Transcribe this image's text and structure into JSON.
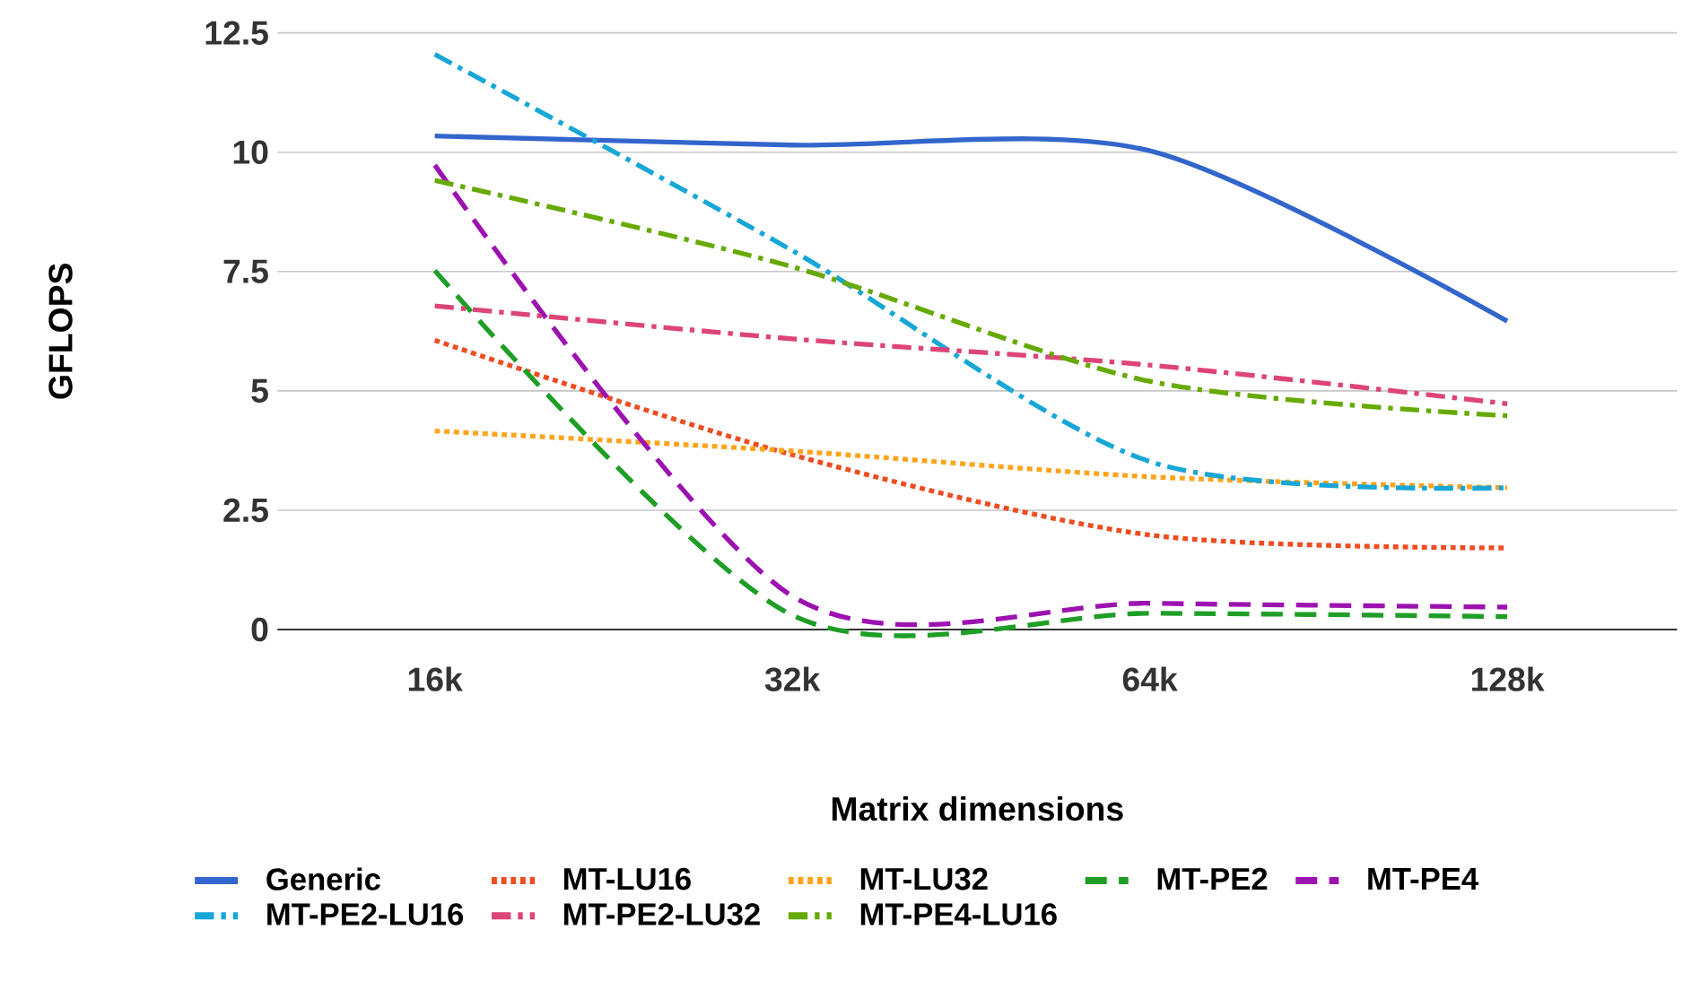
{
  "chart_data": {
    "type": "line",
    "xlabel": "Matrix dimensions",
    "ylabel": "GFLOPS",
    "categories": [
      "16k",
      "32k",
      "64k",
      "128k"
    ],
    "ylim": [
      0,
      12.5
    ],
    "yticks": [
      0,
      2.5,
      5,
      7.5,
      10,
      12.5
    ],
    "grid": "y",
    "legend": "bottom",
    "marker": "none",
    "series": [
      {
        "name": "Generic",
        "color": "#3366cc",
        "line_style": "solid",
        "values": [
          10.34,
          10.15,
          10.03,
          6.46
        ]
      },
      {
        "name": "MT-LU16",
        "color": "#ee4d22",
        "line_style": "dotted",
        "values": [
          6.06,
          3.66,
          1.98,
          1.71
        ]
      },
      {
        "name": "MT-LU32",
        "color": "#ffa41c",
        "line_style": "dotted",
        "values": [
          4.16,
          3.74,
          3.2,
          2.97
        ]
      },
      {
        "name": "MT-PE2",
        "color": "#1e9e26",
        "line_style": "dashed",
        "values": [
          7.52,
          0.3,
          0.34,
          0.27
        ]
      },
      {
        "name": "MT-PE4",
        "color": "#9c12b0",
        "line_style": "dashed",
        "values": [
          9.73,
          0.7,
          0.55,
          0.47
        ]
      },
      {
        "name": "MT-PE2-LU16",
        "color": "#17a7d6",
        "line_style": "dashdot",
        "values": [
          12.05,
          7.94,
          3.52,
          2.97
        ]
      },
      {
        "name": "MT-PE2-LU32",
        "color": "#dd4477",
        "line_style": "dashdot",
        "values": [
          6.78,
          6.09,
          5.54,
          4.73
        ]
      },
      {
        "name": "MT-PE4-LU16",
        "color": "#66aa00",
        "line_style": "dashdot",
        "values": [
          9.41,
          7.6,
          5.2,
          4.48
        ]
      }
    ]
  }
}
